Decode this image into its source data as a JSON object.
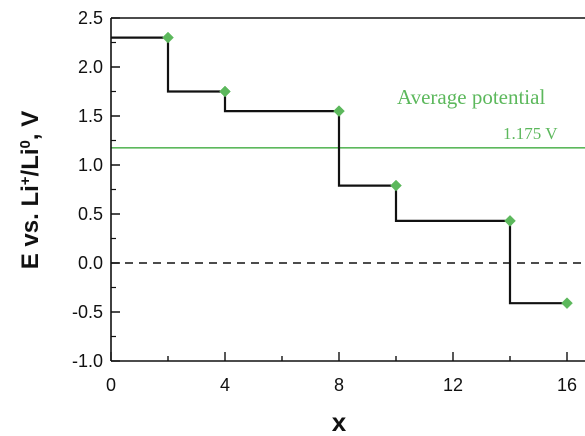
{
  "chart_data": {
    "type": "line",
    "xlabel": "x",
    "ylabel": "E vs. Li+/Li0, V",
    "xlim": [
      0,
      16
    ],
    "ylim": [
      -1.0,
      2.5
    ],
    "x_ticks": [
      "0",
      "4",
      "8",
      "12",
      "16"
    ],
    "y_ticks": [
      "2.5",
      "2.0",
      "1.5",
      "1.0",
      "0.5",
      "0.0",
      "-0.5",
      "-1.0"
    ],
    "grid": false,
    "series": [
      {
        "style": "step",
        "color": "#111111",
        "x": [
          0,
          2,
          2,
          4,
          4,
          8,
          8,
          10,
          10,
          14,
          14,
          16
        ],
        "y": [
          2.3,
          2.3,
          1.75,
          1.75,
          1.55,
          1.55,
          0.79,
          0.79,
          0.43,
          0.43,
          -0.41,
          -0.41
        ]
      },
      {
        "style": "markers",
        "marker": "diamond",
        "color": "#5cb85c",
        "x": [
          2,
          4,
          8,
          10,
          14,
          16
        ],
        "y": [
          2.3,
          1.75,
          1.55,
          0.79,
          0.43,
          -0.41
        ]
      }
    ],
    "reference_lines": [
      {
        "orientation": "horizontal",
        "y": 1.175,
        "color": "#5cb85c",
        "style": "solid"
      },
      {
        "orientation": "horizontal",
        "y": 0.0,
        "color": "#111111",
        "style": "dashed"
      }
    ],
    "annotations": [
      {
        "text": "Average potential",
        "color": "#5cb85c"
      },
      {
        "text": "1.175 V",
        "color": "#5cb85c"
      }
    ]
  }
}
